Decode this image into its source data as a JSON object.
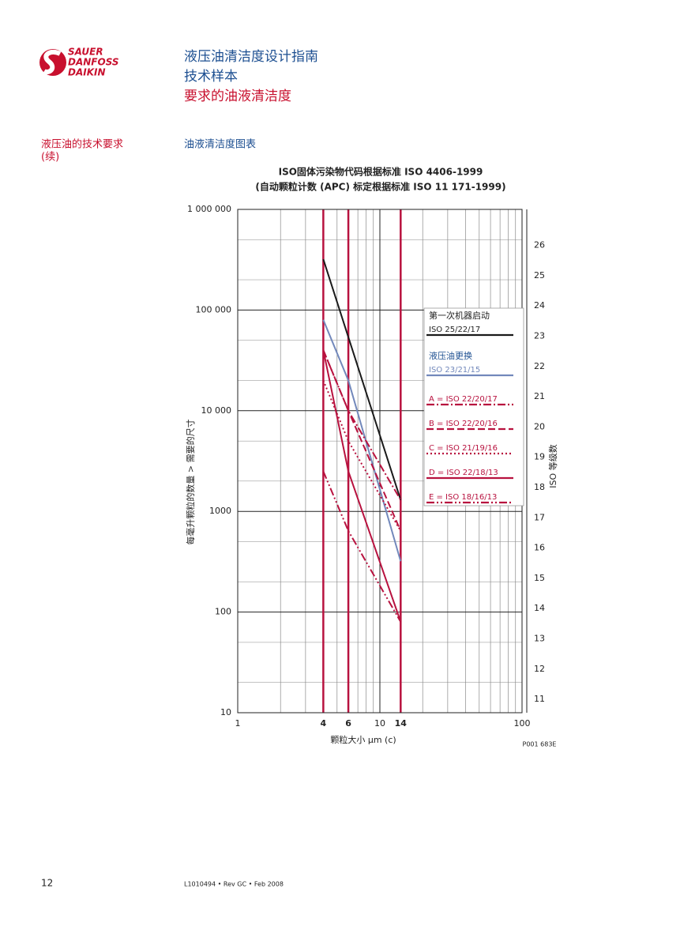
{
  "header": {
    "logo": [
      "SAUER",
      "DANFOSS",
      "DAIKIN"
    ],
    "title_lines": [
      "液压油清洁度设计指南",
      "技术样本"
    ],
    "subtitle": "要求的油液清洁度"
  },
  "section": {
    "heading": "液压油的技术要求",
    "heading_note": "(续)",
    "chart_heading": "油液清洁度图表"
  },
  "chart_data": {
    "type": "line",
    "title": "ISO固体污染物代码根据标准 ISO 4406-1999",
    "subtitle": "(自动颗粒计数 (APC) 标定根据标准 ISO 11 171-1999)",
    "x_label": "颗粒大小  μm (c)",
    "y_label": "每毫升颗粒的数量 > 需要的尺寸",
    "y2_label": "ISO 等级数",
    "code": "P001 683E",
    "x_log": true,
    "y_log": true,
    "xlim": [
      1,
      100
    ],
    "ylim": [
      10,
      1000000
    ],
    "y2lim": [
      10.56,
      27.19
    ],
    "xticks": [
      1,
      4,
      6,
      10,
      14,
      100
    ],
    "highlight_x": [
      4,
      6,
      14
    ],
    "yticks": [
      {
        "value": 10,
        "label": "10"
      },
      {
        "value": 100,
        "label": "100"
      },
      {
        "value": 1000,
        "label": "1000"
      },
      {
        "value": 10000,
        "label": "10 000"
      },
      {
        "value": 100000,
        "label": "100 000"
      },
      {
        "value": 1000000,
        "label": "1 000 000"
      }
    ],
    "y2ticks": [
      11,
      12,
      13,
      14,
      15,
      16,
      17,
      18,
      19,
      20,
      21,
      22,
      23,
      24,
      25,
      26
    ],
    "grid": true,
    "series": [
      {
        "group": "第一次机器启动",
        "name": "ISO 25/22/17",
        "color": "#1a1a1a",
        "style": "solid",
        "x": [
          4,
          14
        ],
        "values": [
          320000,
          1300
        ]
      },
      {
        "group": "液压油更换",
        "name": "ISO 23/21/15",
        "color": "#7288bb",
        "style": "solid",
        "x": [
          4,
          6,
          14
        ],
        "values": [
          80000,
          20000,
          320
        ]
      },
      {
        "name": "A = ISO 22/20/17",
        "color": "#b8123f",
        "style": "dashdot",
        "x": [
          4,
          6,
          14
        ],
        "values": [
          40000,
          10000,
          1300
        ]
      },
      {
        "name": "B = ISO 22/20/16",
        "color": "#b8123f",
        "style": "dashed",
        "x": [
          4,
          6,
          14
        ],
        "values": [
          40000,
          10000,
          640
        ]
      },
      {
        "name": "C = ISO 21/19/16",
        "color": "#b8123f",
        "style": "dotted",
        "x": [
          4,
          6,
          14
        ],
        "values": [
          20000,
          5000,
          640
        ]
      },
      {
        "name": "D = ISO 22/18/13",
        "color": "#b8123f",
        "style": "solid",
        "x": [
          4,
          6,
          14
        ],
        "values": [
          40000,
          2500,
          80
        ]
      },
      {
        "name": "E = ISO 18/16/13",
        "color": "#b8123f",
        "style": "dashdotdot",
        "x": [
          4,
          6,
          14
        ],
        "values": [
          2500,
          640,
          80
        ]
      }
    ]
  },
  "footer": {
    "page": "12",
    "doc": "L1010494 • Rev GC • Feb 2008"
  }
}
